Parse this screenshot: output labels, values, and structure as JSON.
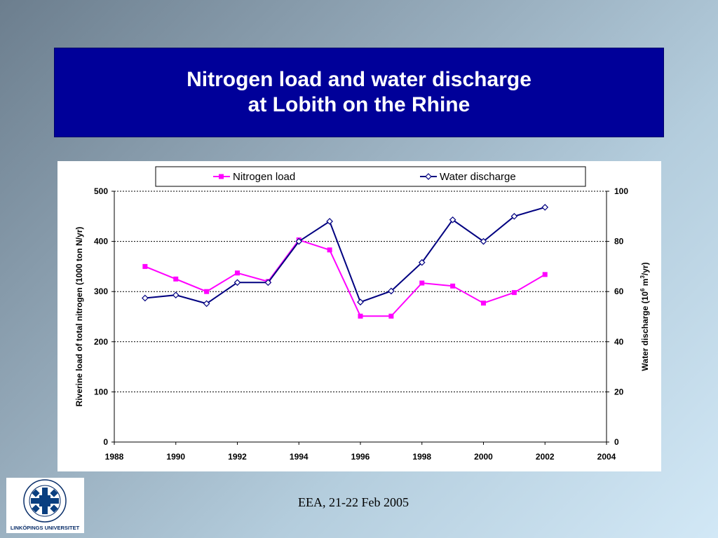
{
  "slide": {
    "title_line1": "Nitrogen load and water discharge",
    "title_line2": "at Lobith on the Rhine",
    "footer": "EEA, 21-22 Feb 2005",
    "logo_text_bottom": "LINKÖPINGS UNIVERSITET",
    "logo_text_ring": "LINKÖPINGS UNIVERSITET"
  },
  "colors": {
    "title_bg": "#000099",
    "nitrogen": "#ff00ff",
    "discharge": "#000080"
  },
  "chart_data": {
    "type": "line",
    "legend_position": "top",
    "grid": "dotted horizontal",
    "x_ticks": [
      "1988",
      "1990",
      "1992",
      "1994",
      "1996",
      "1998",
      "2000",
      "2002",
      "2004"
    ],
    "xlim": [
      1988,
      2004
    ],
    "ylabel_left": "Riverine load of total nitrogen (1000 ton N/yr)",
    "ylim_left": [
      0,
      500
    ],
    "y_ticks_left": [
      "0",
      "100",
      "200",
      "300",
      "400",
      "500"
    ],
    "ylabel_right_prefix": "Water discharge (10",
    "ylabel_right_exp1": "6",
    "ylabel_right_mid": " m",
    "ylabel_right_exp2": "3",
    "ylabel_right_suffix": "/yr)",
    "ylim_right": [
      0,
      100
    ],
    "y_ticks_right": [
      "0",
      "20",
      "40",
      "60",
      "80",
      "100"
    ],
    "series": [
      {
        "name": "Nitrogen load",
        "axis": "left",
        "x": [
          1989,
          1990,
          1991,
          1992,
          1993,
          1994,
          1995,
          1996,
          1997,
          1998,
          1999,
          2000,
          2001,
          2002
        ],
        "values": [
          350,
          325,
          300,
          337,
          320,
          403,
          383,
          251,
          251,
          317,
          311,
          277,
          298,
          334
        ]
      },
      {
        "name": "Water discharge",
        "axis": "right",
        "x": [
          1989,
          1990,
          1991,
          1992,
          1993,
          1994,
          1995,
          1996,
          1997,
          1998,
          1999,
          2000,
          2001,
          2002
        ],
        "values": [
          57.4,
          58.6,
          55.2,
          63.6,
          63.6,
          80.0,
          88.0,
          55.8,
          60.2,
          71.6,
          88.6,
          80.0,
          90.0,
          93.6
        ]
      }
    ]
  }
}
